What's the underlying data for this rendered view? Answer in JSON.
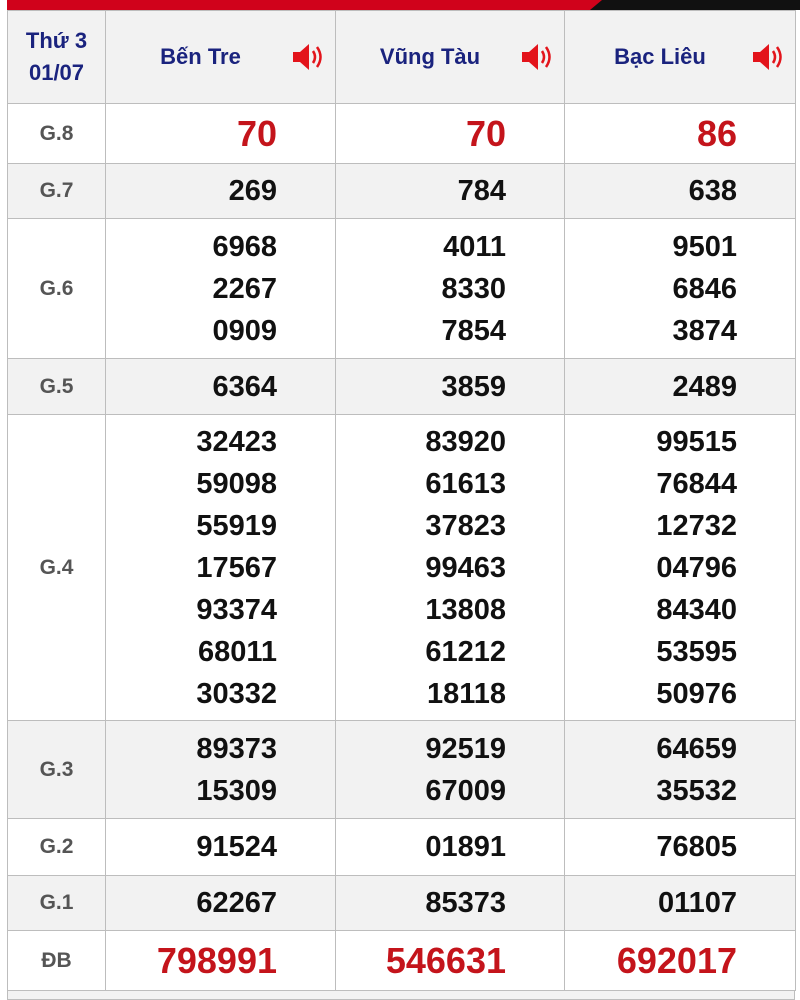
{
  "header": {
    "day": "Thứ 3",
    "date": "01/07",
    "provinces": [
      "Bến Tre",
      "Vũng Tàu",
      "Bạc Liêu"
    ],
    "speaker_icon": "speaker-volume-icon",
    "accent_color": "#d0021b"
  },
  "rows": [
    {
      "label": "G.8",
      "values": [
        [
          "70"
        ],
        [
          "70"
        ],
        [
          "86"
        ]
      ]
    },
    {
      "label": "G.7",
      "values": [
        [
          "269"
        ],
        [
          "784"
        ],
        [
          "638"
        ]
      ]
    },
    {
      "label": "G.6",
      "values": [
        [
          "6968",
          "2267",
          "0909"
        ],
        [
          "4011",
          "8330",
          "7854"
        ],
        [
          "9501",
          "6846",
          "3874"
        ]
      ]
    },
    {
      "label": "G.5",
      "values": [
        [
          "6364"
        ],
        [
          "3859"
        ],
        [
          "2489"
        ]
      ]
    },
    {
      "label": "G.4",
      "values": [
        [
          "32423",
          "59098",
          "55919",
          "17567",
          "93374",
          "68011",
          "30332"
        ],
        [
          "83920",
          "61613",
          "37823",
          "99463",
          "13808",
          "61212",
          "18118"
        ],
        [
          "99515",
          "76844",
          "12732",
          "04796",
          "84340",
          "53595",
          "50976"
        ]
      ]
    },
    {
      "label": "G.3",
      "values": [
        [
          "89373",
          "15309"
        ],
        [
          "92519",
          "67009"
        ],
        [
          "64659",
          "35532"
        ]
      ]
    },
    {
      "label": "G.2",
      "values": [
        [
          "91524"
        ],
        [
          "01891"
        ],
        [
          "76805"
        ]
      ]
    },
    {
      "label": "G.1",
      "values": [
        [
          "62267"
        ],
        [
          "85373"
        ],
        [
          "01107"
        ]
      ]
    },
    {
      "label": "ĐB",
      "values": [
        [
          "798991"
        ],
        [
          "546631"
        ],
        [
          "692017"
        ]
      ]
    }
  ]
}
